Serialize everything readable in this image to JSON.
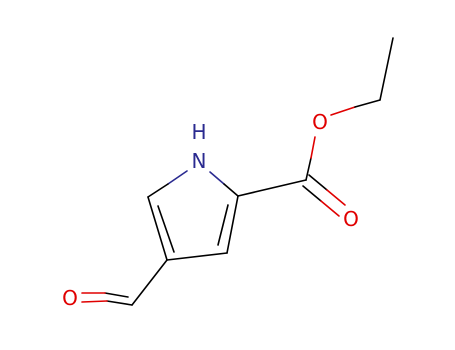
{
  "atoms": [
    {
      "label": "H"
    },
    {
      "label": "N"
    },
    {
      "label": "O"
    },
    {
      "label": "O"
    },
    {
      "label": "O"
    }
  ]
}
